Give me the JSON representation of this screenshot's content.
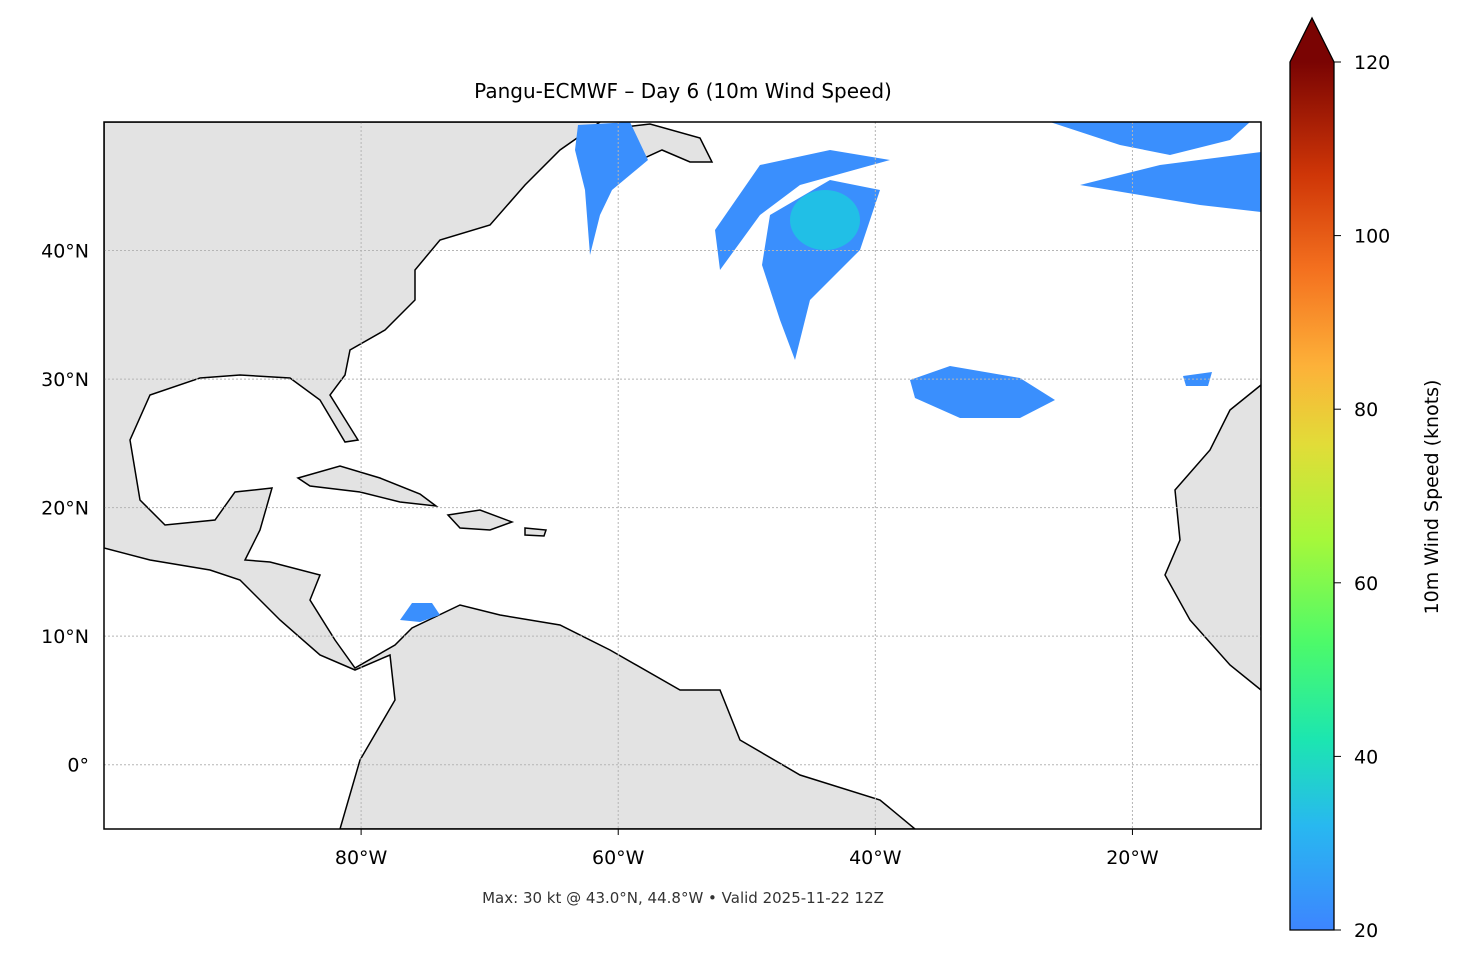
{
  "map": {
    "title": "Pangu-ECMWF – Day 6 (10m Wind Speed)",
    "xlim": [
      -100,
      -10
    ],
    "ylim": [
      -5,
      50
    ],
    "xticks": [
      {
        "value": -80,
        "label": "80°W"
      },
      {
        "value": -60,
        "label": "60°W"
      },
      {
        "value": -40,
        "label": "40°W"
      },
      {
        "value": -20,
        "label": "20°W"
      }
    ],
    "yticks": [
      {
        "value": 0,
        "label": "0°"
      },
      {
        "value": 10,
        "label": "10°N"
      },
      {
        "value": 20,
        "label": "20°N"
      },
      {
        "value": 30,
        "label": "30°N"
      },
      {
        "value": 40,
        "label": "40°N"
      }
    ],
    "grid": true,
    "footer": "Max: 30 kt @ 43.0°N, 44.8°W • Valid 2025-11-22 12Z"
  },
  "colorbar": {
    "label": "10m Wind Speed (knots)",
    "lim": [
      20,
      120
    ],
    "ticks": [
      20,
      40,
      60,
      80,
      100,
      120
    ]
  }
}
